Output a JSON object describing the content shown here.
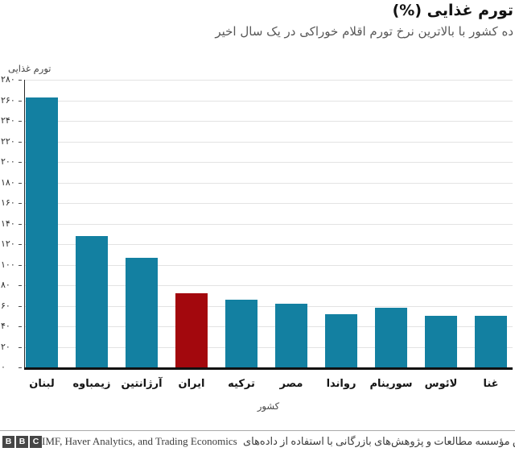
{
  "page": {
    "background": "#ffffff"
  },
  "chart_data": {
    "type": "bar",
    "title": "تورم غذایی (%)",
    "subtitle": "ده کشور با بالاترین نرخ تورم اقلام خوراکی در یک سال اخیر",
    "ylabel": "تورم غذایی",
    "xlabel": "کشور",
    "ylim": [
      0,
      280
    ],
    "ytick_step": 20,
    "grid": true,
    "legend": "none",
    "categories": [
      "لبنان",
      "زیمباوه",
      "آرژانتین",
      "ایران",
      "ترکیه",
      "مصر",
      "رواندا",
      "سورینام",
      "لائوس",
      "غنا"
    ],
    "values": [
      263,
      128,
      107,
      72,
      66,
      62,
      52,
      58,
      50,
      50
    ],
    "highlight_index": 3,
    "colors": {
      "bar": "#1380a1",
      "highlight": "#a3080d",
      "gridline": "#e3e3e3",
      "axis": "#111111"
    },
    "yticks": [
      {
        "value": 280,
        "label": "۲۸۰"
      },
      {
        "value": 260,
        "label": "۲۶۰"
      },
      {
        "value": 240,
        "label": "۲۴۰"
      },
      {
        "value": 220,
        "label": "۲۲۰"
      },
      {
        "value": 200,
        "label": "۲۰۰"
      },
      {
        "value": 180,
        "label": "۱۸۰"
      },
      {
        "value": 160,
        "label": "۱۶۰"
      },
      {
        "value": 140,
        "label": "۱۴۰"
      },
      {
        "value": 120,
        "label": "۱۲۰"
      },
      {
        "value": 100,
        "label": "۱۰۰"
      },
      {
        "value": 80,
        "label": "۸۰"
      },
      {
        "value": 60,
        "label": "۶۰"
      },
      {
        "value": 40,
        "label": "۴۰"
      },
      {
        "value": 20,
        "label": "۲۰"
      },
      {
        "value": 0,
        "label": "۰"
      }
    ]
  },
  "footer": {
    "logo_letters": [
      "B",
      "B",
      "C"
    ],
    "attribution_fa": "گزارش مؤسسه مطالعات و پژوهش‌های بازرگانی با استفاده از داده‌های",
    "sources_en": "IMF, Haver Analytics, and Trading Economics"
  }
}
